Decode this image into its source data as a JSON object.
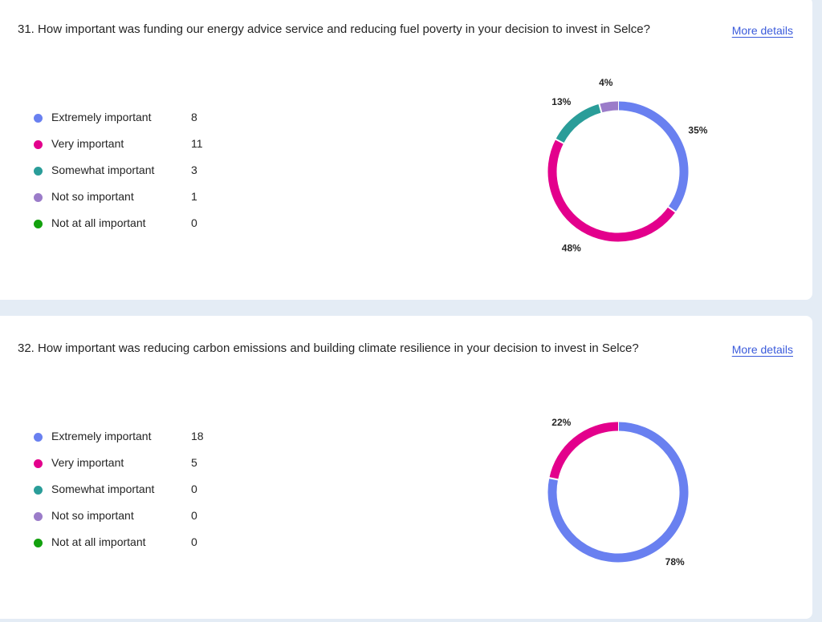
{
  "colors": {
    "extremely": "#6980f0",
    "very": "#e3008c",
    "somewhat": "#2a9d99",
    "not_so": "#9b7cc9",
    "not_at_all": "#13a10e"
  },
  "questions": [
    {
      "text": "31. How important was funding our energy advice service and reducing fuel poverty in your decision to invest in Selce?",
      "more_label": "More details",
      "legend": [
        {
          "label": "Extremely important",
          "count": "8"
        },
        {
          "label": "Very important",
          "count": "11"
        },
        {
          "label": "Somewhat important",
          "count": "3"
        },
        {
          "label": "Not so important",
          "count": "1"
        },
        {
          "label": "Not at all important",
          "count": "0"
        }
      ],
      "chart_data": {
        "type": "pie",
        "labels": [
          "Extremely important",
          "Very important",
          "Somewhat important",
          "Not so important",
          "Not at all important"
        ],
        "values": [
          8,
          11,
          3,
          1,
          0
        ],
        "percent_labels": [
          "35%",
          "48%",
          "13%",
          "4%",
          ""
        ]
      }
    },
    {
      "text": "32. How important was reducing carbon emissions and building climate resilience in your decision to invest in Selce?",
      "more_label": "More details",
      "legend": [
        {
          "label": "Extremely important",
          "count": "18"
        },
        {
          "label": "Very important",
          "count": "5"
        },
        {
          "label": "Somewhat important",
          "count": "0"
        },
        {
          "label": "Not so important",
          "count": "0"
        },
        {
          "label": "Not at all important",
          "count": "0"
        }
      ],
      "chart_data": {
        "type": "pie",
        "labels": [
          "Extremely important",
          "Very important",
          "Somewhat important",
          "Not so important",
          "Not at all important"
        ],
        "values": [
          18,
          5,
          0,
          0,
          0
        ],
        "percent_labels": [
          "78%",
          "22%",
          "",
          "",
          ""
        ]
      }
    }
  ]
}
